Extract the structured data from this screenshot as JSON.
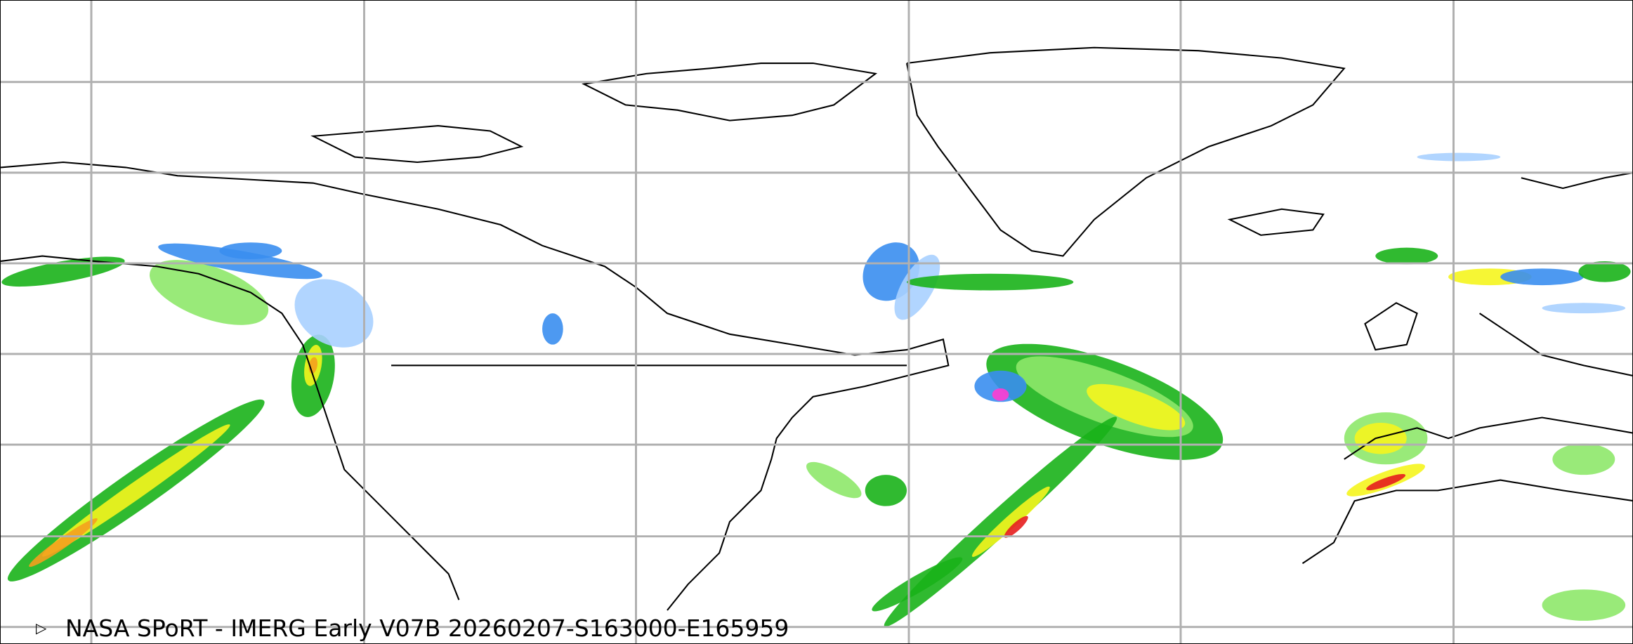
{
  "map": {
    "caption": "NASA SPoRT - IMERG Early V07B 20260207-S163000-E165959",
    "marker_icon": "triangle-right-icon",
    "gridlines": true,
    "colors": {
      "grid": "#b0b0b0",
      "coastline": "#000000",
      "precip_light_blue": "#a8d0ff",
      "precip_blue": "#3a8ef0",
      "precip_light_green": "#8ee86a",
      "precip_green": "#19b219",
      "precip_dark_green": "#0a7a1a",
      "precip_yellow": "#f5f51e",
      "precip_orange": "#f5a01e",
      "precip_red": "#e61e1e",
      "precip_magenta": "#ff3cd2"
    }
  }
}
